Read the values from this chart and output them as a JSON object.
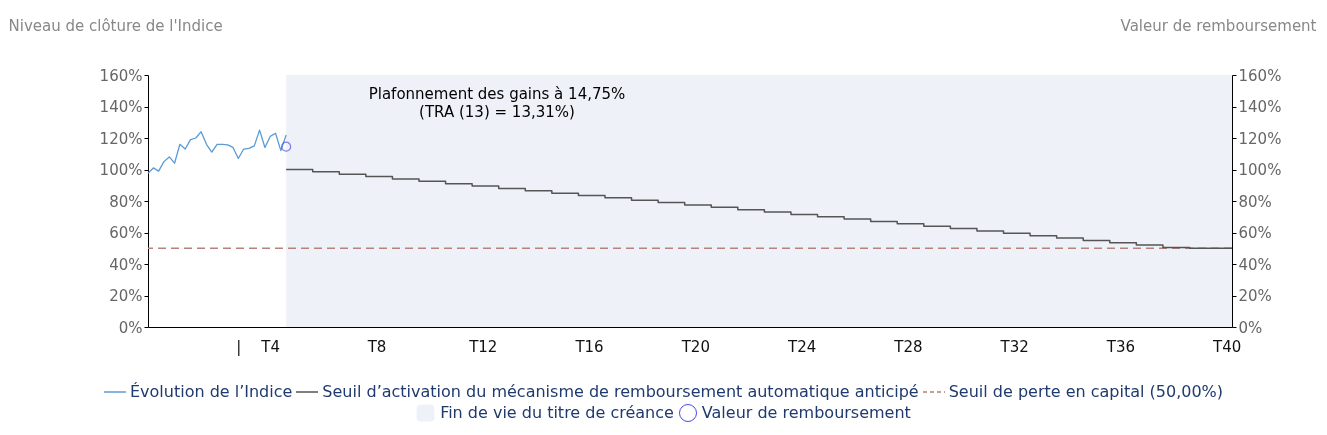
{
  "chart_data": {
    "type": "line",
    "ylabel": "Niveau de clôture de l'Indice",
    "y2label": "Valeur de remboursement",
    "annotations": [
      "Plafonnement des gains à 14,75%",
      "(TRA (13) = 13,31%)"
    ],
    "categories": [
      null,
      null,
      null,
      null,
      null,
      null,
      null,
      null,
      null,
      null,
      null,
      null,
      null,
      null,
      null,
      null,
      null,
      "|",
      null,
      null,
      null,
      null,
      null,
      "T4",
      null,
      null,
      null,
      null,
      null,
      null,
      null,
      null,
      null,
      null,
      null,
      null,
      null,
      null,
      null,
      null,
      null,
      null,
      null,
      "T8",
      null,
      null,
      null,
      null,
      null,
      null,
      null,
      null,
      null,
      null,
      null,
      null,
      null,
      null,
      null,
      null,
      null,
      null,
      null,
      "T12",
      null,
      null,
      null,
      null,
      null,
      null,
      null,
      null,
      null,
      null,
      null,
      null,
      null,
      null,
      null,
      null,
      null,
      null,
      null,
      "T16",
      null,
      null,
      null,
      null,
      null,
      null,
      null,
      null,
      null,
      null,
      null,
      null,
      null,
      null,
      null,
      null,
      null,
      null,
      null,
      "T20",
      null,
      null,
      null,
      null,
      null,
      null,
      null,
      null,
      null,
      null,
      null,
      null,
      null,
      null,
      null,
      null,
      null,
      null,
      null,
      "T24",
      null,
      null,
      null,
      null,
      null,
      null,
      null,
      null,
      null,
      null,
      null,
      null,
      null,
      null,
      null,
      null,
      null,
      null,
      null,
      "T28",
      null,
      null,
      null,
      null,
      null,
      null,
      null,
      null,
      null,
      null,
      null,
      null,
      null,
      null,
      null,
      null,
      null,
      null,
      null,
      "T32",
      null,
      null,
      null,
      null,
      null,
      null,
      null,
      null,
      null,
      null,
      null,
      null,
      null,
      null,
      null,
      null,
      null,
      null,
      null,
      "T36",
      null,
      null,
      null,
      null,
      null,
      null,
      null,
      null,
      null,
      null,
      null,
      null,
      null,
      null,
      null,
      null,
      null,
      null,
      null,
      "T40",
      null
    ],
    "ylim": [
      0,
      160
    ],
    "yticks": [
      {
        "value": 0,
        "label": "0%"
      },
      {
        "value": 20,
        "label": "20%"
      },
      {
        "value": 40,
        "label": "40%"
      },
      {
        "value": 60,
        "label": "60%"
      },
      {
        "value": 80,
        "label": "80%"
      },
      {
        "value": 100,
        "label": "100%"
      },
      {
        "value": 120,
        "label": "120%"
      },
      {
        "value": 140,
        "label": "140%"
      },
      {
        "value": 160,
        "label": "160%"
      }
    ],
    "y2lim": [
      0,
      160
    ],
    "y2ticks": [
      {
        "value": 0,
        "label": "0%"
      },
      {
        "value": 20,
        "label": "20%"
      },
      {
        "value": 40,
        "label": "40%"
      },
      {
        "value": 60,
        "label": "60%"
      },
      {
        "value": 80,
        "label": "80%"
      },
      {
        "value": 100,
        "label": "100%"
      },
      {
        "value": 120,
        "label": "120%"
      },
      {
        "value": 140,
        "label": "140%"
      },
      {
        "value": 160,
        "label": "160%"
      }
    ],
    "grid": false,
    "legend": "bottom",
    "series": [
      {
        "name": "Fin de vie du titre de créance",
        "type": "area",
        "color": "#eef2f8",
        "values": [
          null,
          null,
          null,
          null,
          null,
          null,
          null,
          null,
          null,
          null,
          null,
          null,
          null,
          null,
          null,
          null,
          null,
          null,
          null,
          null,
          null,
          null,
          null,
          null,
          null,
          null,
          160,
          160,
          160,
          160,
          160,
          160,
          160,
          160,
          160,
          160,
          160,
          160,
          160,
          160,
          160,
          160,
          160,
          160,
          160,
          160,
          160,
          160,
          160,
          160,
          160,
          160,
          160,
          160,
          160,
          160,
          160,
          160,
          160,
          160,
          160,
          160,
          160,
          160,
          160,
          160,
          160,
          160,
          160,
          160,
          160,
          160,
          160,
          160,
          160,
          160,
          160,
          160,
          160,
          160,
          160,
          160,
          160,
          160,
          160,
          160,
          160,
          160,
          160,
          160,
          160,
          160,
          160,
          160,
          160,
          160,
          160,
          160,
          160,
          160,
          160,
          160,
          160,
          160,
          160,
          160,
          160,
          160,
          160,
          160,
          160,
          160,
          160,
          160,
          160,
          160,
          160,
          160,
          160,
          160,
          160,
          160,
          160,
          160,
          160,
          160,
          160,
          160,
          160,
          160,
          160,
          160,
          160,
          160,
          160,
          160,
          160,
          160,
          160,
          160,
          160,
          160,
          160,
          160,
          160,
          160,
          160,
          160,
          160,
          160,
          160,
          160,
          160,
          160,
          160,
          160,
          160,
          160,
          160,
          160,
          160,
          160,
          160,
          160,
          160,
          160,
          160,
          160,
          160,
          160,
          160,
          160,
          160,
          160,
          160,
          160,
          160,
          160,
          160,
          160,
          160,
          160,
          160,
          160,
          160,
          160,
          160,
          160,
          160,
          160,
          160,
          160,
          160,
          160,
          160,
          160,
          160,
          160,
          160,
          160,
          160,
          160,
          160,
          160,
          160
        ]
      },
      {
        "name": "Évolution de l’Indice",
        "color": "#5b9bd5",
        "values": [
          97.6,
          101,
          99,
          105,
          108,
          104,
          116,
          113,
          119,
          120,
          124,
          116,
          111,
          116,
          116,
          115.6,
          114,
          107,
          113,
          113.4,
          115,
          125,
          114,
          121,
          123,
          112,
          121.9,
          null,
          null,
          null,
          null,
          null,
          null,
          null,
          null,
          null,
          null,
          null,
          null,
          null,
          null,
          null,
          null,
          null,
          null,
          null,
          null,
          null,
          null,
          null,
          null,
          null,
          null,
          null,
          null,
          null,
          null,
          null,
          null,
          null,
          null,
          null,
          null,
          null,
          null,
          null,
          null,
          null,
          null,
          null,
          null,
          null,
          null,
          null,
          null,
          null,
          null,
          null,
          null,
          null,
          null,
          null,
          null,
          null,
          null,
          null,
          null,
          null,
          null,
          null,
          null,
          null,
          null,
          null,
          null,
          null,
          null,
          null,
          null,
          null,
          null,
          null,
          null,
          null,
          null,
          null,
          null,
          null,
          null,
          null,
          null,
          null,
          null,
          null,
          null,
          null,
          null,
          null,
          null,
          null,
          null,
          null,
          null,
          null,
          null,
          null,
          null,
          null,
          null,
          null,
          null,
          null,
          null,
          null,
          null,
          null,
          null,
          null,
          null,
          null,
          null,
          null,
          null,
          null,
          null,
          null,
          null,
          null,
          null,
          null,
          null,
          null,
          null,
          null,
          null,
          null,
          null,
          null,
          null,
          null,
          null,
          null,
          null,
          null,
          null,
          null,
          null,
          null,
          null,
          null,
          null,
          null,
          null,
          null,
          null,
          null,
          null,
          null,
          null,
          null,
          null,
          null,
          null,
          null,
          null,
          null,
          null,
          null,
          null,
          null,
          null,
          null,
          null,
          null,
          null,
          null,
          null,
          null,
          null,
          null,
          null,
          null,
          null,
          null,
          null
        ]
      },
      {
        "name": "Seuil d’activation du mécanisme de remboursement automatique anticipé",
        "type": "step",
        "color": "#555555",
        "values": [
          null,
          null,
          null,
          null,
          null,
          null,
          null,
          null,
          null,
          null,
          null,
          null,
          null,
          null,
          null,
          null,
          null,
          null,
          null,
          null,
          null,
          null,
          null,
          null,
          null,
          null,
          100,
          100,
          100,
          100,
          100,
          98.5,
          98.5,
          98.5,
          98.5,
          98.5,
          97,
          97,
          97,
          97,
          97,
          95.5,
          95.5,
          95.5,
          95.5,
          95.5,
          94,
          94,
          94,
          94,
          94,
          92.5,
          92.5,
          92.5,
          92.5,
          92.5,
          91,
          91,
          91,
          91,
          91,
          89.5,
          89.5,
          89.5,
          89.5,
          89.5,
          88,
          88,
          88,
          88,
          88,
          86.5,
          86.5,
          86.5,
          86.5,
          86.5,
          85,
          85,
          85,
          85,
          85,
          83.5,
          83.5,
          83.5,
          83.5,
          83.5,
          82,
          82,
          82,
          82,
          82,
          80.5,
          80.5,
          80.5,
          80.5,
          80.5,
          79,
          79,
          79,
          79,
          79,
          77.5,
          77.5,
          77.5,
          77.5,
          77.5,
          76,
          76,
          76,
          76,
          76,
          74.5,
          74.5,
          74.5,
          74.5,
          74.5,
          73,
          73,
          73,
          73,
          73,
          71.5,
          71.5,
          71.5,
          71.5,
          71.5,
          70,
          70,
          70,
          70,
          70,
          68.5,
          68.5,
          68.5,
          68.5,
          68.5,
          67,
          67,
          67,
          67,
          67,
          65.5,
          65.5,
          65.5,
          65.5,
          65.5,
          64,
          64,
          64,
          64,
          64,
          62.5,
          62.5,
          62.5,
          62.5,
          62.5,
          61,
          61,
          61,
          61,
          61,
          59.5,
          59.5,
          59.5,
          59.5,
          59.5,
          58,
          58,
          58,
          58,
          58,
          56.5,
          56.5,
          56.5,
          56.5,
          56.5,
          55,
          55,
          55,
          55,
          55,
          53.5,
          53.5,
          53.5,
          53.5,
          53.5,
          52,
          52,
          52,
          52,
          52,
          50.5,
          50.5,
          50.5,
          50.5,
          50.5,
          50,
          50,
          50,
          50,
          50,
          50,
          50,
          50,
          50
        ]
      },
      {
        "name": "Valeur de remboursement",
        "type": "scatter",
        "marker": "circle",
        "axis": "y2",
        "color": "#4a4ae0",
        "values": [
          null,
          null,
          null,
          null,
          null,
          null,
          null,
          null,
          null,
          null,
          null,
          null,
          null,
          null,
          null,
          null,
          null,
          null,
          null,
          null,
          null,
          null,
          null,
          null,
          null,
          null,
          114.5,
          null,
          null,
          null,
          null,
          null,
          null,
          null,
          null,
          null,
          null,
          null,
          null,
          null,
          null,
          null,
          null,
          null,
          null,
          null,
          null,
          null,
          null,
          null,
          null,
          null,
          null,
          null,
          null,
          null,
          null,
          null,
          null,
          null,
          null,
          null,
          null,
          null,
          null,
          null,
          null,
          null,
          null,
          null,
          null,
          null,
          null,
          null,
          null,
          null,
          null,
          null,
          null,
          null,
          null,
          null,
          null,
          null,
          null,
          null,
          null,
          null,
          null,
          null,
          null,
          null,
          null,
          null,
          null,
          null,
          null,
          null,
          null,
          null,
          null,
          null,
          null,
          null,
          null,
          null,
          null,
          null,
          null,
          null,
          null,
          null,
          null,
          null,
          null,
          null,
          null,
          null,
          null,
          null,
          null,
          null,
          null,
          null,
          null,
          null,
          null,
          null,
          null,
          null,
          null,
          null,
          null,
          null,
          null,
          null,
          null,
          null,
          null,
          null,
          null,
          null,
          null,
          null,
          null,
          null,
          null,
          null,
          null,
          null,
          null,
          null,
          null,
          null,
          null,
          null,
          null,
          null,
          null,
          null,
          null,
          null,
          null,
          null,
          null,
          null,
          null,
          null,
          null,
          null,
          null,
          null,
          null,
          null,
          null,
          null,
          null,
          null,
          null,
          null,
          null,
          null,
          null,
          null,
          null,
          null,
          null,
          null,
          null,
          null,
          null,
          null,
          null,
          null,
          null,
          null,
          null,
          null,
          null,
          null,
          null,
          null,
          null,
          null,
          null
        ]
      }
    ],
    "ref_lines": [
      {
        "axis": "y",
        "value": 50,
        "label": "Seuil de perte en capital (50,00%)",
        "color": "#b5837a",
        "line_style": "dashed"
      }
    ]
  }
}
